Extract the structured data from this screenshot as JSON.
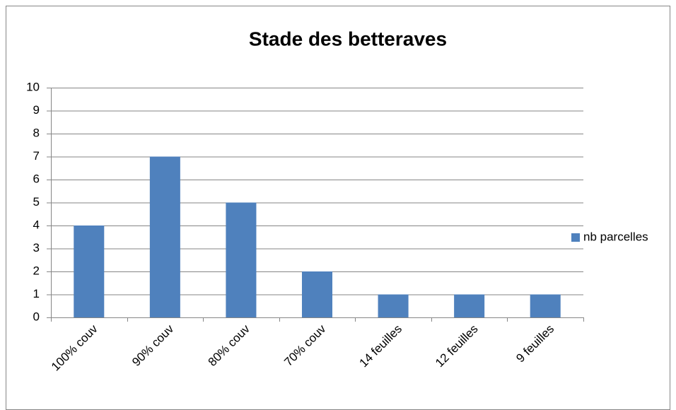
{
  "chart_data": {
    "type": "bar",
    "title": "Stade des betteraves",
    "categories": [
      "100% couv",
      "90% couv",
      "80% couv",
      "70% couv",
      "14 feuilles",
      "12 feuilles",
      "9 feuilles"
    ],
    "series": [
      {
        "name": "nb parcelles",
        "color": "#4f81bd",
        "values": [
          4,
          7,
          5,
          2,
          1,
          1,
          1
        ]
      }
    ],
    "ylim": [
      0,
      10
    ],
    "yticks": [
      0,
      1,
      2,
      3,
      4,
      5,
      6,
      7,
      8,
      9,
      10
    ],
    "grid": true,
    "legend": "right"
  }
}
